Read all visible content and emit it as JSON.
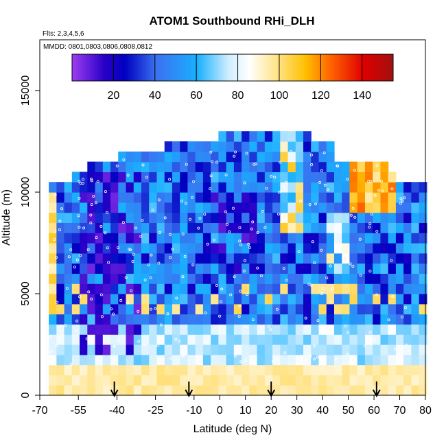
{
  "chart_data": {
    "type": "heatmap",
    "title": "ATOM1 Southbound RHi_DLH",
    "subtitle_flights": "Flts: 2,3,4,5,6",
    "subtitle_dates": "MMDD: 0801,0803,0806,0808,0812",
    "xlabel": "Latitude (deg N)",
    "ylabel": "Altitude (m)",
    "xlim": [
      -70,
      80
    ],
    "ylim": [
      0,
      17500
    ],
    "x_ticks": [
      -70,
      -55,
      -40,
      -25,
      -10,
      0,
      10,
      20,
      30,
      40,
      50,
      60,
      70,
      80
    ],
    "y_ticks": [
      0,
      5000,
      10000,
      15000
    ],
    "colorbar": {
      "range": [
        0,
        155
      ],
      "ticks": [
        20,
        40,
        60,
        80,
        100,
        120,
        140
      ],
      "position": "top",
      "stops": [
        {
          "v": 0,
          "color": "#9a3cf0"
        },
        {
          "v": 15,
          "color": "#2a00c8"
        },
        {
          "v": 25,
          "color": "#0000c0"
        },
        {
          "v": 40,
          "color": "#3a70f0"
        },
        {
          "v": 60,
          "color": "#1ab0ff"
        },
        {
          "v": 75,
          "color": "#cfeeff"
        },
        {
          "v": 85,
          "color": "#ffffff"
        },
        {
          "v": 100,
          "color": "#ffe07a"
        },
        {
          "v": 112,
          "color": "#ffc000"
        },
        {
          "v": 125,
          "color": "#ff6000"
        },
        {
          "v": 140,
          "color": "#e00000"
        },
        {
          "v": 155,
          "color": "#a01010"
        }
      ]
    },
    "latitudes": [
      -68,
      -65,
      -62,
      -59,
      -56,
      -53,
      -50,
      -47,
      -44,
      -41,
      -38,
      -35,
      -32,
      -29,
      -26,
      -23,
      -20,
      -17,
      -14,
      -11,
      -8,
      -5,
      -2,
      1,
      4,
      7,
      10,
      13,
      16,
      19,
      22,
      25,
      28,
      31,
      34,
      37,
      40,
      43,
      46,
      49,
      52,
      55,
      58,
      61,
      64,
      67,
      70,
      73,
      76,
      79
    ],
    "altitudes": [
      250,
      750,
      1250,
      1750,
      2250,
      2750,
      3250,
      3750,
      4250,
      4750,
      5250,
      5750,
      6250,
      6750,
      7250,
      7750,
      8250,
      8750,
      9250,
      9750,
      10250,
      10750,
      11250,
      11750,
      12250,
      12750,
      13250
    ],
    "arrows_latitude": [
      -41,
      -12,
      20,
      61
    ]
  }
}
